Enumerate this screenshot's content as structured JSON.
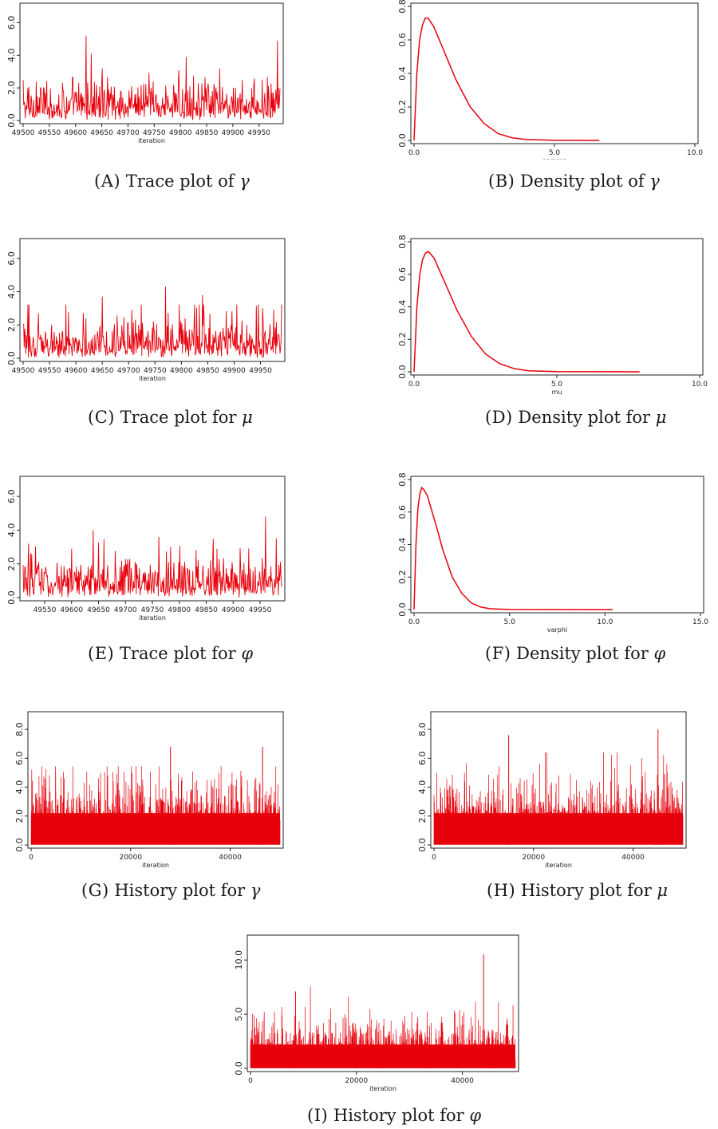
{
  "chart_data": [
    {
      "id": "A",
      "type": "line",
      "kind": "trace",
      "caption": {
        "label": "(A)",
        "text": "Trace plot of",
        "symbol": "γ"
      },
      "xlabel": "iteration",
      "ylabel": "",
      "xlim": [
        49500,
        49990
      ],
      "ylim": [
        0,
        7
      ],
      "xticks": [
        "49500",
        "49550",
        "49600",
        "49650",
        "49700",
        "49750",
        "49800",
        "49850",
        "49900",
        "49950"
      ],
      "yticks": [
        "0.0",
        "2.0",
        "4.0",
        "6.0"
      ],
      "series": [
        {
          "name": "gamma",
          "mean": 1.0,
          "max": 5.2,
          "spikes": [
            [
              49620,
              5.2
            ],
            [
              49630,
              4.1
            ],
            [
              49985,
              4.9
            ]
          ]
        }
      ],
      "color": "#e8000b"
    },
    {
      "id": "B",
      "type": "line",
      "kind": "density",
      "caption": {
        "label": "(B)",
        "text": "Density plot of",
        "symbol": "γ"
      },
      "xlabel": "gamma",
      "ylabel": "",
      "xlim": [
        0,
        10
      ],
      "ylim": [
        0,
        0.8
      ],
      "xticks": [
        "0.0",
        "5.0",
        "10.0"
      ],
      "yticks": [
        "0.0",
        "0.2",
        "0.4",
        "0.6",
        "0.8"
      ],
      "series": [
        {
          "name": "gamma",
          "x": [
            0,
            0.1,
            0.2,
            0.3,
            0.4,
            0.5,
            0.7,
            0.9,
            1.2,
            1.5,
            2.0,
            2.5,
            3.0,
            3.5,
            4.0,
            5.0,
            6.6
          ],
          "y": [
            0,
            0.4,
            0.6,
            0.69,
            0.73,
            0.73,
            0.68,
            0.6,
            0.48,
            0.36,
            0.2,
            0.1,
            0.04,
            0.015,
            0.005,
            0.001,
            0
          ]
        }
      ],
      "color": "#e8000b"
    },
    {
      "id": "C",
      "type": "line",
      "kind": "trace",
      "caption": {
        "label": "(C)",
        "text": "Trace plot for",
        "symbol": "μ"
      },
      "xlabel": "iteration",
      "ylabel": "",
      "xlim": [
        49500,
        49990
      ],
      "ylim": [
        0,
        7
      ],
      "xticks": [
        "49500",
        "49550",
        "49600",
        "49650",
        "49700",
        "49750",
        "49800",
        "49850",
        "49900",
        "49950"
      ],
      "yticks": [
        "0.0",
        "2.0",
        "4.0",
        "6.0"
      ],
      "series": [
        {
          "name": "mu",
          "mean": 1.0,
          "max": 4.3,
          "spikes": [
            [
              49770,
              4.3
            ],
            [
              49840,
              3.8
            ],
            [
              49650,
              3.7
            ]
          ]
        }
      ],
      "color": "#e8000b"
    },
    {
      "id": "D",
      "type": "line",
      "kind": "density",
      "caption": {
        "label": "(D)",
        "text": "Density plot for",
        "symbol": "μ"
      },
      "xlabel": "mu",
      "ylabel": "",
      "xlim": [
        0,
        10
      ],
      "ylim": [
        0,
        0.8
      ],
      "xticks": [
        "0.0",
        "5.0",
        "10.0"
      ],
      "yticks": [
        "0.0",
        "0.2",
        "0.4",
        "0.6",
        "0.8"
      ],
      "series": [
        {
          "name": "mu",
          "x": [
            0,
            0.1,
            0.2,
            0.3,
            0.4,
            0.5,
            0.7,
            0.9,
            1.2,
            1.5,
            2.0,
            2.5,
            3.0,
            3.5,
            4.0,
            5.0,
            7.9
          ],
          "y": [
            0,
            0.4,
            0.6,
            0.69,
            0.73,
            0.74,
            0.7,
            0.62,
            0.5,
            0.38,
            0.22,
            0.11,
            0.05,
            0.02,
            0.006,
            0.001,
            0
          ]
        }
      ],
      "color": "#e8000b"
    },
    {
      "id": "E",
      "type": "line",
      "kind": "trace",
      "caption": {
        "label": "(E)",
        "text": "Trace plot for",
        "symbol": "φ"
      },
      "xlabel": "iteration",
      "ylabel": "",
      "xlim": [
        49510,
        49990
      ],
      "ylim": [
        0,
        7
      ],
      "xticks": [
        "49550",
        "49600",
        "49650",
        "49700",
        "49750",
        "49800",
        "49850",
        "49900",
        "49950"
      ],
      "yticks": [
        "0.0",
        "2.0",
        "4.0",
        "6.0"
      ],
      "series": [
        {
          "name": "varphi",
          "mean": 1.0,
          "max": 4.8,
          "spikes": [
            [
              49960,
              4.8
            ],
            [
              49640,
              4.0
            ],
            [
              49520,
              3.2
            ]
          ]
        }
      ],
      "color": "#e8000b"
    },
    {
      "id": "F",
      "type": "line",
      "kind": "density",
      "caption": {
        "label": "(F)",
        "text": "Density plot for",
        "symbol": "φ"
      },
      "xlabel": "varphi",
      "ylabel": "",
      "xlim": [
        0,
        15
      ],
      "ylim": [
        0,
        0.8
      ],
      "xticks": [
        "0.0",
        "5.0",
        "10.0",
        "15.0"
      ],
      "yticks": [
        "0.0",
        "0.2",
        "0.4",
        "0.6",
        "0.8"
      ],
      "series": [
        {
          "name": "varphi",
          "x": [
            0,
            0.1,
            0.2,
            0.3,
            0.4,
            0.5,
            0.7,
            0.9,
            1.2,
            1.5,
            2.0,
            2.5,
            3.0,
            3.5,
            4.0,
            5.0,
            10.4
          ],
          "y": [
            0,
            0.4,
            0.62,
            0.71,
            0.75,
            0.74,
            0.7,
            0.62,
            0.5,
            0.37,
            0.2,
            0.1,
            0.04,
            0.015,
            0.005,
            0.001,
            0
          ]
        }
      ],
      "color": "#e8000b"
    },
    {
      "id": "G",
      "type": "line",
      "kind": "history",
      "caption": {
        "label": "(G)",
        "text": "History plot for",
        "symbol": "γ"
      },
      "xlabel": "iteration",
      "ylabel": "",
      "xlim": [
        0,
        50000
      ],
      "ylim": [
        0,
        9
      ],
      "xticks": [
        "0",
        "20000",
        "40000"
      ],
      "yticks": [
        "0.0",
        "2.0",
        "4.0",
        "6.0",
        "8.0"
      ],
      "series": [
        {
          "name": "gamma",
          "mean": 1.0,
          "max": 6.8,
          "spikes": [
            [
              28000,
              6.8
            ],
            [
              46500,
              6.8
            ]
          ]
        }
      ],
      "color": "#e8000b"
    },
    {
      "id": "H",
      "type": "line",
      "kind": "history",
      "caption": {
        "label": "(H)",
        "text": "History plot for",
        "symbol": "μ"
      },
      "xlabel": "iteration",
      "ylabel": "",
      "xlim": [
        0,
        50000
      ],
      "ylim": [
        0,
        9
      ],
      "xticks": [
        "0",
        "20000",
        "40000"
      ],
      "yticks": [
        "0.0",
        "2.0",
        "4.0",
        "6.0",
        "8.0"
      ],
      "series": [
        {
          "name": "mu",
          "mean": 1.0,
          "max": 8.0,
          "spikes": [
            [
              15000,
              7.6
            ],
            [
              45000,
              8.0
            ]
          ]
        }
      ],
      "color": "#e8000b"
    },
    {
      "id": "I",
      "type": "line",
      "kind": "history",
      "caption": {
        "label": "(I)",
        "text": "History plot for",
        "symbol": "φ"
      },
      "xlabel": "iteration",
      "ylabel": "",
      "xlim": [
        0,
        50000
      ],
      "ylim": [
        0,
        12
      ],
      "xticks": [
        "0",
        "20000",
        "40000"
      ],
      "yticks": [
        "0.0",
        "5.0",
        "10.0"
      ],
      "series": [
        {
          "name": "varphi",
          "mean": 1.0,
          "max": 10.5,
          "spikes": [
            [
              44000,
              10.5
            ],
            [
              8500,
              7.1
            ]
          ]
        }
      ],
      "color": "#e8000b"
    }
  ]
}
